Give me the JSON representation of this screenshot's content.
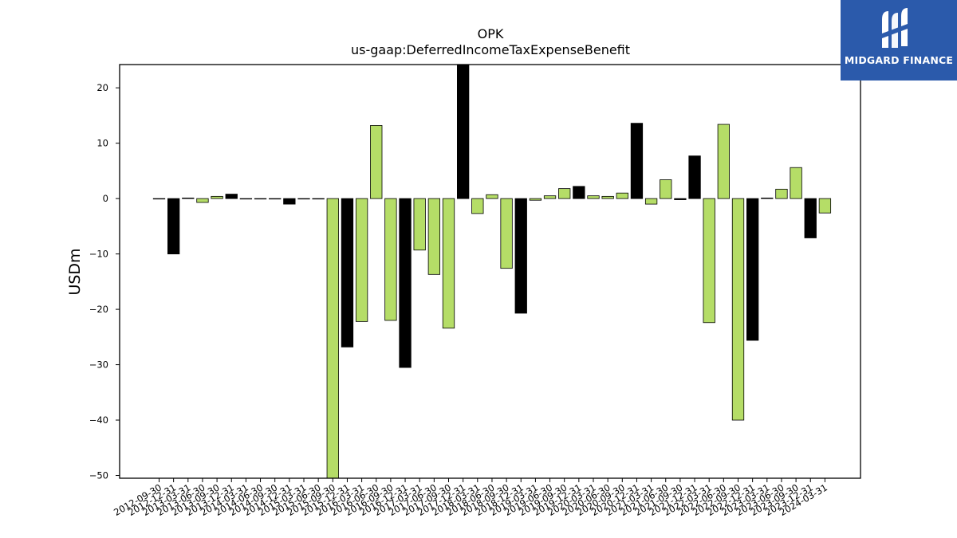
{
  "brand": {
    "name": "MIDGARD FINANCE",
    "background": "#2b5aab",
    "icon": "midgard-logo-mark"
  },
  "chart_data": {
    "type": "bar",
    "title": "OPK",
    "subtitle": "us-gaap:DeferredIncomeTaxExpenseBenefit",
    "ylabel": "USDm",
    "xlabel": "",
    "ylim": [
      -50.5,
      24.2
    ],
    "yticks": [
      20,
      10,
      0,
      -10,
      -20,
      -30,
      -40,
      -50
    ],
    "grid": false,
    "legend": "none",
    "colors": {
      "green": "#b5dd67",
      "black": "#000000",
      "edge": "#000000"
    },
    "categories": [
      "2012-09-30",
      "2012-12-31",
      "2013-03-31",
      "2013-06-30",
      "2013-09-30",
      "2013-12-31",
      "2014-03-31",
      "2014-06-30",
      "2014-09-30",
      "2014-12-31",
      "2015-03-31",
      "2015-06-30",
      "2015-09-30",
      "2015-12-31",
      "2016-03-31",
      "2016-06-30",
      "2016-09-30",
      "2016-12-31",
      "2017-03-31",
      "2017-06-30",
      "2017-09-30",
      "2017-12-31",
      "2018-03-31",
      "2018-06-30",
      "2018-09-30",
      "2018-12-31",
      "2019-03-31",
      "2019-06-30",
      "2019-09-30",
      "2019-12-31",
      "2020-03-31",
      "2020-06-30",
      "2020-09-30",
      "2020-12-31",
      "2021-03-31",
      "2021-06-30",
      "2021-09-30",
      "2021-12-31",
      "2022-03-31",
      "2022-06-30",
      "2022-09-30",
      "2022-12-31",
      "2023-03-31",
      "2023-06-30",
      "2023-09-30",
      "2023-12-31",
      "2024-03-31"
    ],
    "tick_labels": [
      "2012-09-30",
      "2012-12-31",
      "2013-03-31",
      "2013-06-30",
      "2013-09-30",
      "2013-12-31",
      "2014-03-31",
      "2014-06-30",
      "2014-09-30",
      "2014-12-31",
      "2015-03-31",
      "2015-06-30",
      "2015-09-30",
      "2015-12-31",
      "2016-03-31",
      "2016-06-30",
      "2016-09-30",
      "2016-12-31",
      "2017-03-31",
      "2017-06-30",
      "2017-09-30",
      "2017-12-31",
      "2018-03-31",
      "2018-06-30",
      "2018-09-30",
      "2018-12-31",
      "2019-03-31",
      "2019-06-30",
      "2019-09-30",
      "2019-12-31",
      "2020-03-31",
      "2020-06-30",
      "2020-09-30",
      "2020-12-31",
      "2021-03-31",
      "2021-06-30",
      "2021-09-30",
      "2021-12-31",
      "2022-03-31",
      "2022-06-30",
      "2022-09-30",
      "2022-12-31",
      "2023-03-31",
      "2023-06-30",
      "2023-09-30",
      "2023-12-31",
      "2024-03-31"
    ],
    "values": [
      0.0,
      -10.0,
      0.1,
      -0.7,
      0.4,
      0.8,
      0.0,
      0.0,
      0.0,
      -1.0,
      0.0,
      0.0,
      -51.0,
      -26.8,
      -22.2,
      13.2,
      -22.0,
      -30.5,
      -9.3,
      -13.7,
      -23.4,
      24.5,
      -2.7,
      0.7,
      -12.6,
      -20.7,
      -0.3,
      0.5,
      1.8,
      2.2,
      0.5,
      0.4,
      1.0,
      13.6,
      -1.0,
      3.4,
      -0.2,
      7.7,
      -22.4,
      13.4,
      -40.0,
      -25.6,
      0.1,
      1.7,
      5.6,
      -7.1,
      -2.6
    ],
    "bar_colors": [
      "green",
      "black",
      "black",
      "green",
      "green",
      "black",
      "green",
      "black",
      "green",
      "black",
      "green",
      "black",
      "green",
      "black",
      "green",
      "green",
      "green",
      "black",
      "green",
      "green",
      "green",
      "black",
      "green",
      "green",
      "green",
      "black",
      "green",
      "green",
      "green",
      "black",
      "green",
      "green",
      "green",
      "black",
      "green",
      "green",
      "black",
      "black",
      "green",
      "green",
      "green",
      "black",
      "black",
      "green",
      "green",
      "black",
      "green"
    ]
  }
}
